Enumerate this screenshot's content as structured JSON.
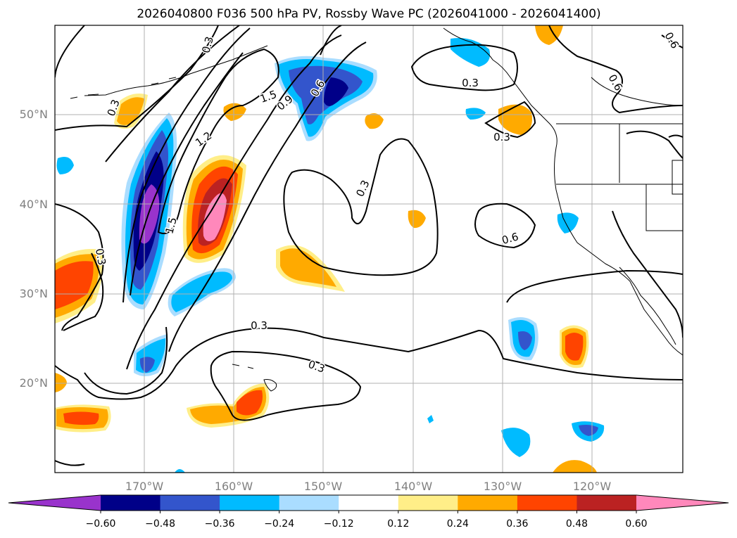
{
  "title": "2026040800 F036 500 hPa PV, Rossby Wave PC (2026041000 - 2026041400)",
  "map": {
    "lat_range": [
      10,
      60
    ],
    "lon_range": [
      -180,
      -110
    ],
    "lat_ticks": [
      "20°N",
      "30°N",
      "40°N",
      "50°N"
    ],
    "lon_ticks": [
      "170°W",
      "160°W",
      "150°W",
      "140°W",
      "130°W",
      "120°W"
    ],
    "gridlines": true,
    "contour_labels": [
      "0.3",
      "0.3",
      "0.3",
      "0.3",
      "0.3",
      "0.3",
      "0.3",
      "0.3",
      "0.6",
      "0.6",
      "0.6",
      "0.6",
      "0.9",
      "1.2",
      "1.5",
      "1.5"
    ]
  },
  "colorbar": {
    "ticks": [
      "−0.60",
      "−0.48",
      "−0.36",
      "−0.24",
      "−0.12",
      "0.12",
      "0.24",
      "0.36",
      "0.48",
      "0.60"
    ],
    "colors": [
      "#9933cc",
      "#000088",
      "#3355cc",
      "#00bbff",
      "#aaddff",
      "#ffffff",
      "#ffee88",
      "#ffaa00",
      "#ff4400",
      "#bb2222",
      "#ff88bb"
    ]
  },
  "colors": {
    "coast": "#000000",
    "grid": "#b0b0b0"
  }
}
